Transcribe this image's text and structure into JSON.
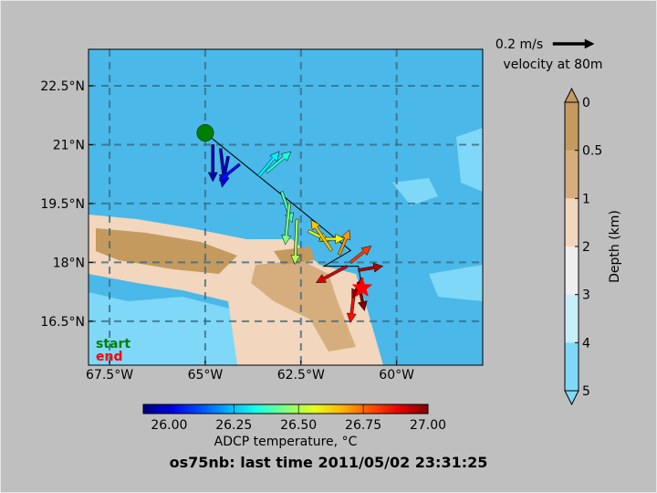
{
  "title": "os75nb: last time 2011/05/02 23:31:25",
  "map": {
    "lonlim": [
      -68.05,
      -57.75
    ],
    "latlim": [
      15.38,
      23.43
    ],
    "grid": true,
    "lonticks": [
      {
        "value": -67.5,
        "label": "67.5°W"
      },
      {
        "value": -65,
        "label": "65°W"
      },
      {
        "value": -62.5,
        "label": "62.5°W"
      },
      {
        "value": -60,
        "label": "60°W"
      }
    ],
    "latticks": [
      {
        "value": 16.5,
        "label": "16.5°N"
      },
      {
        "value": 18,
        "label": "18°N"
      },
      {
        "value": 19.5,
        "label": "19.5°N"
      },
      {
        "value": 21,
        "label": "21°N"
      },
      {
        "value": 22.5,
        "label": "22.5°N"
      }
    ],
    "track": {
      "lon": [
        -65,
        -61.2,
        -61.9,
        -61.0,
        -60.9
      ],
      "lat": [
        21.3,
        18.3,
        17.9,
        17.9,
        17.35
      ]
    },
    "start": {
      "label": "start",
      "color": "#008000",
      "lon": -65,
      "lat": 21.3
    },
    "end": {
      "label": "end",
      "color": "#ff0000",
      "lon": -60.9,
      "lat": 17.35
    },
    "vectors": {
      "lon": [
        -64.8,
        -64.6,
        -64.4,
        -64.1,
        -63.6,
        -63.4,
        -63.0,
        -62.8,
        -62.6,
        -62.3,
        -62.0,
        -61.7,
        -61.5,
        -61.2,
        -61.3,
        -61.0,
        -61.0,
        -61.1,
        -60.9
      ],
      "lat": [
        21.0,
        20.9,
        20.7,
        20.5,
        20.2,
        20.3,
        19.8,
        19.5,
        19.1,
        18.8,
        18.6,
        18.3,
        18.2,
        18.0,
        17.9,
        17.8,
        17.5,
        17.3,
        17.6
      ],
      "u": [
        0,
        0.02,
        -0.03,
        -0.1,
        0.1,
        0.12,
        0.05,
        -0.02,
        -0.01,
        0.1,
        0.12,
        -0.1,
        0.05,
        0.1,
        -0.15,
        0.12,
        0.03,
        -0.02,
        -0.05
      ],
      "v": [
        -0.18,
        -0.17,
        -0.15,
        -0.08,
        0.12,
        0.1,
        -0.15,
        -0.2,
        -0.22,
        -0.05,
        0,
        0.15,
        0.12,
        0.08,
        -0.08,
        0.02,
        -0.14,
        -0.16,
        -0.1
      ],
      "temperature": [
        25.95,
        25.97,
        26.0,
        26.05,
        26.3,
        26.35,
        26.4,
        26.45,
        26.5,
        26.55,
        26.6,
        26.65,
        26.7,
        26.8,
        26.9,
        26.95,
        27.0,
        26.85,
        26.98
      ]
    }
  },
  "scale_arrow": {
    "label": "0.2 m/s",
    "value": 0.2,
    "caption": "velocity at 80m"
  },
  "temperature_colorbar": {
    "label": "ADCP temperature, °C",
    "colormap": "jet",
    "clim": [
      25.9,
      27.0
    ],
    "ticks": [
      {
        "value": 26,
        "label": "26.00"
      },
      {
        "value": 26.25,
        "label": "26.25"
      },
      {
        "value": 26.5,
        "label": "26.50"
      },
      {
        "value": 26.75,
        "label": "26.75"
      },
      {
        "value": 27,
        "label": "27.00"
      }
    ]
  },
  "depth_colorbar": {
    "label": "Depth (km)",
    "ticks": [
      0,
      0.5,
      1,
      2,
      3,
      4,
      5
    ],
    "colors": [
      "#c49a5e",
      "#d6ae7e",
      "#f2d6bd",
      "#eeeeee",
      "#c8eefa",
      "#7fd8f8"
    ]
  }
}
